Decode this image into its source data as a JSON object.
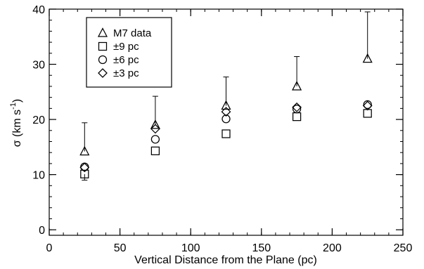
{
  "chart_data": {
    "type": "scatter",
    "xlabel": "Vertical Distance from the Plane (pc)",
    "ylabel": {
      "main": "σ (km s",
      "superscript": "-1",
      "close": ")"
    },
    "xlim": [
      0,
      250
    ],
    "ylim": [
      -1,
      40
    ],
    "xticks": [
      0,
      50,
      100,
      150,
      200,
      250
    ],
    "yticks": [
      0,
      10,
      20,
      30,
      40
    ],
    "xtick_labels": [
      "0",
      "50",
      "100",
      "150",
      "200",
      "250"
    ],
    "ytick_labels": [
      "0",
      "10",
      "20",
      "30",
      "40"
    ],
    "grid": false,
    "legend_position": "top-left",
    "series": [
      {
        "name": "M7 data",
        "marker": "triangle",
        "x": [
          25,
          75,
          125,
          175,
          225
        ],
        "y": [
          14.2,
          19.0,
          22.5,
          26.0,
          31.0
        ],
        "error_upper": [
          5.2,
          5.2,
          5.2,
          5.4,
          8.5
        ],
        "error_lower": [
          0,
          0,
          0,
          0,
          0
        ]
      },
      {
        "name": "±9 pc",
        "marker": "square",
        "x": [
          25,
          75,
          125,
          175,
          225
        ],
        "y": [
          10.1,
          14.3,
          17.4,
          20.5,
          21.1
        ],
        "error_upper": [
          0,
          0,
          0,
          0,
          0
        ],
        "error_lower": [
          1.1,
          0,
          0,
          0,
          0
        ]
      },
      {
        "name": "±6 pc",
        "marker": "circle",
        "x": [
          25,
          75,
          125,
          175,
          225
        ],
        "y": [
          11.4,
          16.4,
          20.1,
          21.9,
          22.7
        ],
        "error_upper": [
          0,
          0,
          0,
          0,
          0
        ],
        "error_lower": [
          0,
          0,
          0,
          0,
          0
        ]
      },
      {
        "name": "±3 pc",
        "marker": "diamond",
        "x": [
          25,
          75,
          125,
          175,
          225
        ],
        "y": [
          11.3,
          18.3,
          21.4,
          22.2,
          22.5
        ],
        "error_upper": [
          0,
          0,
          0,
          0,
          0
        ],
        "error_lower": [
          0,
          0,
          0,
          0,
          0
        ]
      }
    ]
  }
}
